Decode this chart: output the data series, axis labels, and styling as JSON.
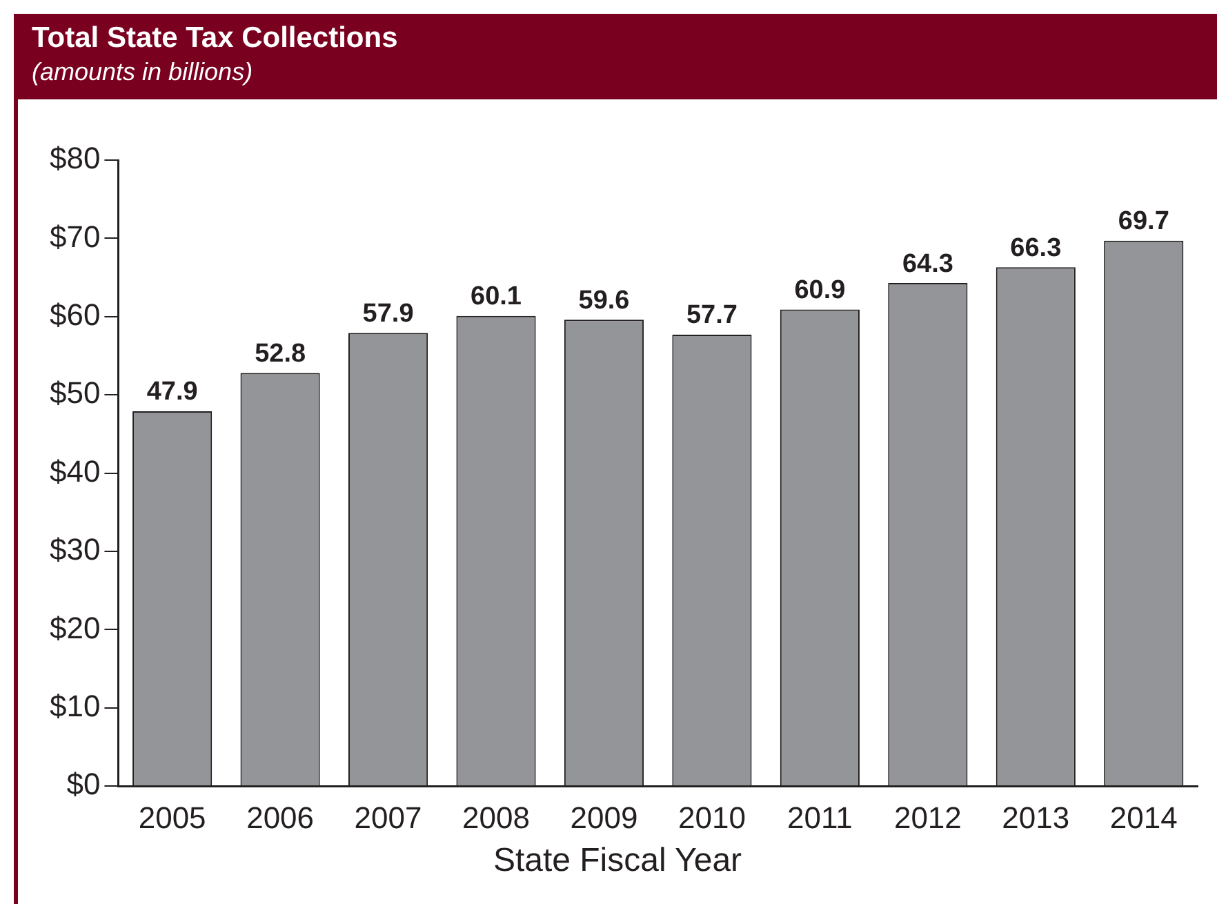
{
  "chart_data": {
    "type": "bar",
    "title": "Total State Tax Collections",
    "subtitle": "(amounts in billions)",
    "xlabel": "State Fiscal Year",
    "categories": [
      "2005",
      "2006",
      "2007",
      "2008",
      "2009",
      "2010",
      "2011",
      "2012",
      "2013",
      "2014"
    ],
    "values": [
      47.9,
      52.8,
      57.9,
      60.1,
      59.6,
      57.7,
      60.9,
      64.3,
      66.3,
      69.7
    ],
    "color": "#939598",
    "ylim": [
      0,
      80
    ],
    "yticks": [
      {
        "value": 0,
        "label": "$0"
      },
      {
        "value": 10,
        "label": "$10"
      },
      {
        "value": 20,
        "label": "$20"
      },
      {
        "value": 30,
        "label": "$30"
      },
      {
        "value": 40,
        "label": "$40"
      },
      {
        "value": 50,
        "label": "$50"
      },
      {
        "value": 60,
        "label": "$60"
      },
      {
        "value": 70,
        "label": "$70"
      },
      {
        "value": 80,
        "label": "$80"
      }
    ],
    "data_labels": true,
    "grid": false,
    "legend": false
  }
}
